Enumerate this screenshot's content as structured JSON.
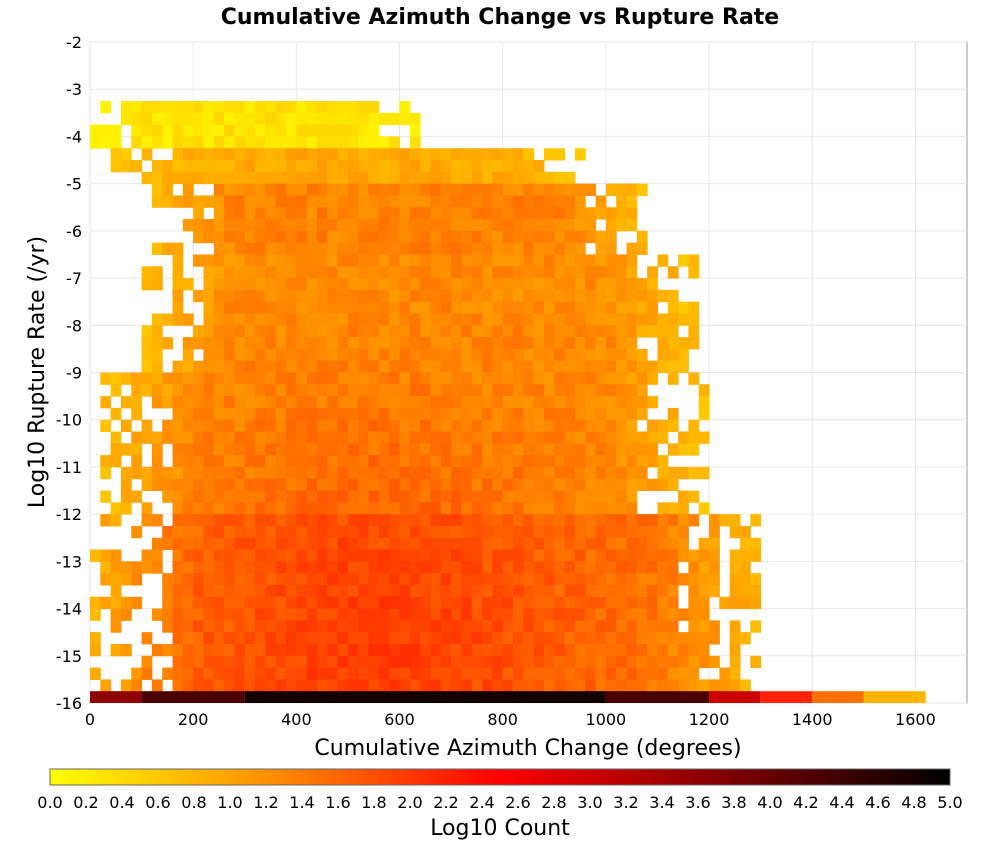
{
  "chart_data": {
    "type": "heatmap",
    "title": "Cumulative Azimuth Change vs Rupture Rate",
    "xlabel": "Cumulative Azimuth Change (degrees)",
    "ylabel": "Log10 Rupture Rate (/yr)",
    "xlim": [
      0,
      1700
    ],
    "ylim": [
      -16,
      -2
    ],
    "x_ticks": [
      0,
      200,
      400,
      600,
      800,
      1000,
      1200,
      1400,
      1600
    ],
    "y_ticks": [
      -2,
      -3,
      -4,
      -5,
      -6,
      -7,
      -8,
      -9,
      -10,
      -11,
      -12,
      -13,
      -14,
      -15,
      -16
    ],
    "grid": true,
    "bin_width_x": 20,
    "bin_height_y": 0.25,
    "colorbar": {
      "label": "Log10 Count",
      "min": 0.0,
      "max": 5.0,
      "ticks": [
        "0.0",
        "0.2",
        "0.4",
        "0.6",
        "0.8",
        "1.0",
        "1.2",
        "1.4",
        "1.6",
        "1.8",
        "2.0",
        "2.2",
        "2.4",
        "2.6",
        "2.8",
        "3.0",
        "3.2",
        "3.4",
        "3.6",
        "3.8",
        "4.0",
        "4.2",
        "4.4",
        "4.6",
        "4.8",
        "5.0"
      ],
      "colors": [
        "#ffff00",
        "#ff8c00",
        "#ff0000",
        "#800000",
        "#000000"
      ]
    },
    "density_rows": [
      {
        "y_top": -3.25,
        "y_bottom": -4.25,
        "x_start": 0,
        "x_end": 640,
        "log10_count": 0.3
      },
      {
        "y_top": -4.25,
        "y_bottom": -5.0,
        "x_start": 40,
        "x_end": 980,
        "log10_count": 0.9
      },
      {
        "y_top": -5.0,
        "y_bottom": -6.5,
        "x_start": 120,
        "x_end": 1080,
        "log10_count": 1.3
      },
      {
        "y_top": -6.5,
        "y_bottom": -9.0,
        "x_start": 100,
        "x_end": 1180,
        "log10_count": 1.2
      },
      {
        "y_top": -9.0,
        "y_bottom": -12.0,
        "x_start": 20,
        "x_end": 1200,
        "log10_count": 1.2
      },
      {
        "y_top": -12.0,
        "y_bottom": -15.75,
        "x_start": 0,
        "x_end": 1300,
        "log10_count": 1.4
      }
    ],
    "peak_region": {
      "x_center": 560,
      "y_center": -15.0,
      "log10_count": 2.0
    },
    "bottom_row": {
      "y": -16.0,
      "bins": [
        {
          "x_start": 0,
          "x_end": 100,
          "log10_count": 3.6
        },
        {
          "x_start": 100,
          "x_end": 300,
          "log10_count": 4.3
        },
        {
          "x_start": 300,
          "x_end": 1000,
          "log10_count": 4.8
        },
        {
          "x_start": 1000,
          "x_end": 1200,
          "log10_count": 4.3
        },
        {
          "x_start": 1200,
          "x_end": 1300,
          "log10_count": 3.0
        },
        {
          "x_start": 1300,
          "x_end": 1400,
          "log10_count": 2.2
        },
        {
          "x_start": 1400,
          "x_end": 1500,
          "log10_count": 1.5
        },
        {
          "x_start": 1500,
          "x_end": 1620,
          "log10_count": 0.8
        }
      ]
    }
  }
}
